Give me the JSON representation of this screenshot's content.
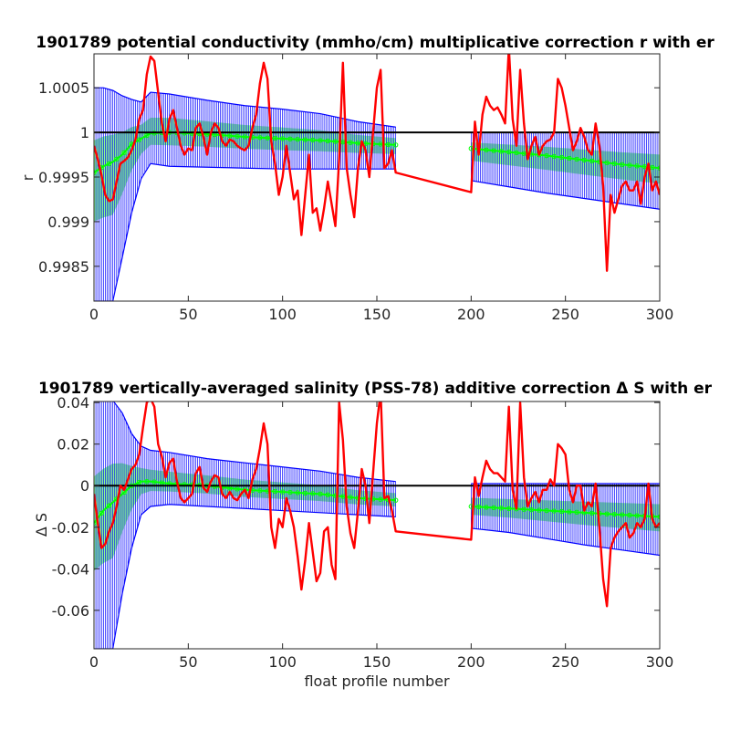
{
  "chart_data": [
    {
      "type": "line",
      "title": "1901789 potential conductivity (mmho/cm) multiplicative correction r with er",
      "xlabel": "",
      "ylabel": "r",
      "xlim": [
        0,
        300
      ],
      "ylim": [
        0.99811,
        1.00088
      ],
      "xticks": [
        0,
        50,
        100,
        150,
        200,
        250,
        300
      ],
      "yticks": [
        0.9985,
        0.999,
        0.9995,
        1,
        1.0005
      ],
      "ytick_labels": [
        "0.9985",
        "0.999",
        "0.9995",
        "1",
        "1.0005"
      ],
      "reference_line": 1.0,
      "legend": "none",
      "grid": false,
      "colors": {
        "measured": "#ff0000",
        "correction": "#00ff00",
        "error_band": "#0000ff",
        "reference": "#000000"
      },
      "segments": [
        {
          "x": [
            0,
            5,
            10,
            15,
            20,
            25,
            30,
            40,
            60,
            80,
            100,
            120,
            140,
            160
          ],
          "y": [
            0.99955,
            0.99962,
            0.99967,
            0.99975,
            0.99987,
            0.99993,
            0.99999,
            1.0,
            0.99998,
            0.99995,
            0.99993,
            0.99991,
            0.99988,
            0.99986
          ],
          "err_upper": [
            1.0005,
            1.0005,
            1.00047,
            1.00041,
            1.00037,
            1.00034,
            1.00045,
            1.00043,
            1.00036,
            1.0003,
            1.00026,
            1.00021,
            1.00012,
            1.00006
          ],
          "err_lower": [
            0.99811,
            0.99811,
            0.99811,
            0.9986,
            0.9991,
            0.99948,
            0.99965,
            0.99962,
            0.99961,
            0.9996,
            0.99959,
            0.99959,
            0.99959,
            0.99959
          ]
        },
        {
          "x": [
            200,
            220,
            240,
            260,
            280,
            300
          ],
          "y": [
            0.99982,
            0.99978,
            0.99974,
            0.99969,
            0.99964,
            0.9996
          ],
          "err_upper": [
            1.0,
            1.0,
            1.0,
            1.0,
            1.0,
            1.0
          ],
          "err_lower": [
            0.99946,
            0.99939,
            0.99932,
            0.99926,
            0.9992,
            0.99914
          ]
        }
      ],
      "series": [
        {
          "name": "",
          "x": [
            0,
            2,
            4,
            6,
            8,
            10,
            12,
            14,
            16,
            18,
            20,
            22,
            24,
            26,
            28,
            30,
            32,
            34,
            36,
            38,
            40,
            42,
            44,
            46,
            48,
            50,
            52,
            54,
            56,
            58,
            60,
            62,
            64,
            66,
            68,
            70,
            72,
            74,
            76,
            78,
            80,
            82,
            84,
            86,
            88,
            90,
            92,
            94,
            96,
            98,
            100,
            102,
            104,
            106,
            108,
            110,
            112,
            114,
            116,
            118,
            120,
            122,
            124,
            126,
            128,
            130,
            132,
            134,
            136,
            138,
            140,
            142,
            144,
            146,
            148,
            150,
            152,
            154,
            156,
            158,
            160,
            200,
            202,
            204,
            206,
            208,
            210,
            212,
            214,
            216,
            218,
            220,
            222,
            224,
            226,
            228,
            230,
            232,
            234,
            236,
            238,
            240,
            242,
            244,
            246,
            248,
            250,
            252,
            254,
            256,
            258,
            260,
            262,
            264,
            266,
            268,
            270,
            272,
            274,
            276,
            278,
            280,
            282,
            284,
            286,
            288,
            290,
            292,
            294,
            296,
            298,
            300
          ],
          "y": [
            0.99985,
            0.9997,
            0.99952,
            0.9993,
            0.99923,
            0.99925,
            0.99945,
            0.99965,
            0.99968,
            0.99972,
            0.9998,
            0.99992,
            1.00015,
            1.00025,
            1.00065,
            1.00085,
            1.0008,
            1.00045,
            1.0001,
            0.9999,
            1.00015,
            1.00025,
            1.00005,
            0.99985,
            0.99975,
            0.99982,
            0.9998,
            1.00005,
            1.0001,
            0.99995,
            0.99975,
            1.0,
            1.0001,
            1.00005,
            0.9999,
            0.99985,
            0.99992,
            0.9999,
            0.99985,
            0.99982,
            0.9998,
            0.99985,
            1.00005,
            1.0002,
            1.00055,
            1.00078,
            1.0006,
            0.9999,
            0.99965,
            0.9993,
            0.9995,
            0.99985,
            0.99955,
            0.99925,
            0.99935,
            0.99885,
            0.9993,
            0.99975,
            0.9991,
            0.99915,
            0.9989,
            0.99915,
            0.99945,
            0.9992,
            0.99895,
            0.9997,
            1.00078,
            0.9996,
            0.9993,
            0.99905,
            0.9996,
            0.9999,
            0.9998,
            0.9995,
            1.0,
            1.0005,
            1.0007,
            0.9996,
            0.99965,
            0.9998,
            0.99955,
            0.99933,
            1.00012,
            0.99975,
            1.0002,
            1.0004,
            1.0003,
            1.00025,
            1.00028,
            1.0002,
            1.0001,
            1.00095,
            1.00015,
            0.99985,
            1.0007,
            1.0001,
            0.9997,
            0.99985,
            0.99995,
            0.99975,
            0.99985,
            0.9999,
            0.99992,
            1.0,
            1.0006,
            1.0005,
            1.0003,
            1.00005,
            0.9998,
            0.9999,
            1.00005,
            0.99995,
            0.9998,
            0.99975,
            1.0001,
            0.99985,
            0.9994,
            0.99845,
            0.9993,
            0.9991,
            0.99925,
            0.9994,
            0.99945,
            0.99935,
            0.99935,
            0.99945,
            0.9992,
            0.9995,
            0.99965,
            0.99935,
            0.99945,
            0.9993
          ]
        }
      ]
    },
    {
      "type": "line",
      "title": "1901789 vertically-averaged salinity (PSS-78) additive correction Δ S with er",
      "xlabel": "float profile number",
      "ylabel": "Δ S",
      "xlim": [
        0,
        300
      ],
      "ylim": [
        -0.0785,
        0.0405
      ],
      "xticks": [
        0,
        50,
        100,
        150,
        200,
        250,
        300
      ],
      "yticks": [
        -0.06,
        -0.04,
        -0.02,
        0,
        0.02,
        0.04
      ],
      "ytick_labels": [
        "-0.06",
        "-0.04",
        "-0.02",
        "0",
        "0.02",
        "0.04"
      ],
      "reference_line": 0,
      "legend": "none",
      "grid": false,
      "colors": {
        "measured": "#ff0000",
        "correction": "#00ff00",
        "error_band": "#0000ff",
        "reference": "#000000"
      },
      "segments": [
        {
          "x": [
            0,
            5,
            10,
            15,
            20,
            25,
            30,
            40,
            60,
            80,
            100,
            120,
            140,
            160
          ],
          "y": [
            -0.018,
            -0.012,
            -0.008,
            -0.004,
            0.0,
            0.002,
            0.002,
            0.001,
            0.0,
            -0.002,
            -0.003,
            -0.004,
            -0.006,
            -0.007
          ],
          "err_upper": [
            0.041,
            0.041,
            0.041,
            0.035,
            0.025,
            0.019,
            0.017,
            0.016,
            0.013,
            0.011,
            0.009,
            0.007,
            0.004,
            0.002
          ],
          "err_lower": [
            -0.0785,
            -0.0785,
            -0.0785,
            -0.052,
            -0.03,
            -0.014,
            -0.01,
            -0.009,
            -0.01,
            -0.011,
            -0.012,
            -0.013,
            -0.014,
            -0.015
          ]
        },
        {
          "x": [
            200,
            220,
            240,
            260,
            280,
            300
          ],
          "y": [
            -0.01,
            -0.011,
            -0.012,
            -0.013,
            -0.014,
            -0.015
          ],
          "err_upper": [
            0.001,
            0.001,
            0.001,
            0.001,
            0.001,
            0.001
          ],
          "err_lower": [
            -0.0205,
            -0.0225,
            -0.0255,
            -0.0285,
            -0.031,
            -0.0335
          ]
        }
      ],
      "series": [
        {
          "name": "",
          "x": [
            0,
            2,
            4,
            6,
            8,
            10,
            12,
            14,
            16,
            18,
            20,
            22,
            24,
            26,
            28,
            30,
            32,
            34,
            36,
            38,
            40,
            42,
            44,
            46,
            48,
            50,
            52,
            54,
            56,
            58,
            60,
            62,
            64,
            66,
            68,
            70,
            72,
            74,
            76,
            78,
            80,
            82,
            84,
            86,
            88,
            90,
            92,
            94,
            96,
            98,
            100,
            102,
            104,
            106,
            108,
            110,
            112,
            114,
            116,
            118,
            120,
            122,
            124,
            126,
            128,
            130,
            132,
            134,
            136,
            138,
            140,
            142,
            144,
            146,
            148,
            150,
            152,
            154,
            156,
            158,
            160,
            200,
            202,
            204,
            206,
            208,
            210,
            212,
            214,
            216,
            218,
            220,
            222,
            224,
            226,
            228,
            230,
            232,
            234,
            236,
            238,
            240,
            242,
            244,
            246,
            248,
            250,
            252,
            254,
            256,
            258,
            260,
            262,
            264,
            266,
            268,
            270,
            272,
            274,
            276,
            278,
            280,
            282,
            284,
            286,
            288,
            290,
            292,
            294,
            296,
            298,
            300
          ],
          "y": [
            -0.004,
            -0.018,
            -0.03,
            -0.028,
            -0.022,
            -0.018,
            -0.01,
            0.0,
            -0.002,
            0.003,
            0.008,
            0.01,
            0.015,
            0.028,
            0.04,
            0.042,
            0.038,
            0.02,
            0.014,
            0.004,
            0.011,
            0.013,
            0.002,
            -0.006,
            -0.008,
            -0.006,
            -0.004,
            0.006,
            0.009,
            -0.001,
            -0.003,
            0.002,
            0.005,
            0.004,
            -0.004,
            -0.006,
            -0.003,
            -0.006,
            -0.007,
            -0.004,
            -0.002,
            -0.006,
            0.003,
            0.008,
            0.018,
            0.03,
            0.02,
            -0.02,
            -0.03,
            -0.016,
            -0.02,
            -0.006,
            -0.012,
            -0.02,
            -0.034,
            -0.05,
            -0.036,
            -0.018,
            -0.032,
            -0.046,
            -0.042,
            -0.022,
            -0.02,
            -0.038,
            -0.045,
            0.04,
            0.022,
            -0.01,
            -0.023,
            -0.03,
            -0.012,
            0.008,
            0.0,
            -0.018,
            0.006,
            0.03,
            0.045,
            -0.006,
            -0.005,
            -0.012,
            -0.022,
            -0.026,
            0.004,
            -0.005,
            0.004,
            0.012,
            0.008,
            0.006,
            0.006,
            0.004,
            0.002,
            0.038,
            -0.002,
            -0.011,
            0.04,
            0.004,
            -0.01,
            -0.006,
            -0.003,
            -0.008,
            -0.002,
            -0.002,
            0.003,
            0.0,
            0.02,
            0.018,
            0.015,
            -0.002,
            -0.008,
            0.0,
            0.0,
            -0.012,
            -0.008,
            -0.01,
            0.001,
            -0.02,
            -0.045,
            -0.058,
            -0.03,
            -0.025,
            -0.022,
            -0.02,
            -0.018,
            -0.025,
            -0.023,
            -0.018,
            -0.02,
            -0.016,
            0.001,
            -0.016,
            -0.02,
            -0.018
          ]
        }
      ]
    }
  ]
}
